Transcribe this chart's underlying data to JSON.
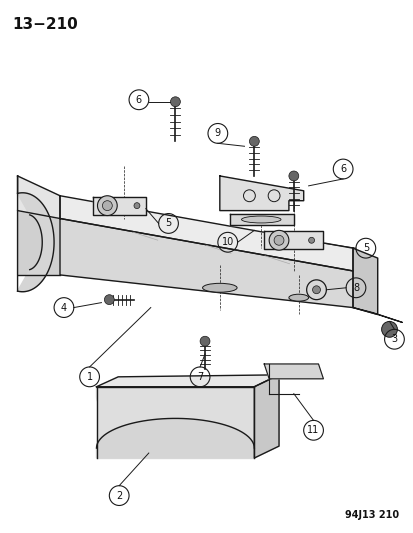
{
  "title": "13−210",
  "subtitle": "94J13 210",
  "bg_color": "#ffffff",
  "line_color": "#1a1a1a",
  "text_color": "#111111",
  "fig_width": 4.14,
  "fig_height": 5.33,
  "dpi": 100
}
